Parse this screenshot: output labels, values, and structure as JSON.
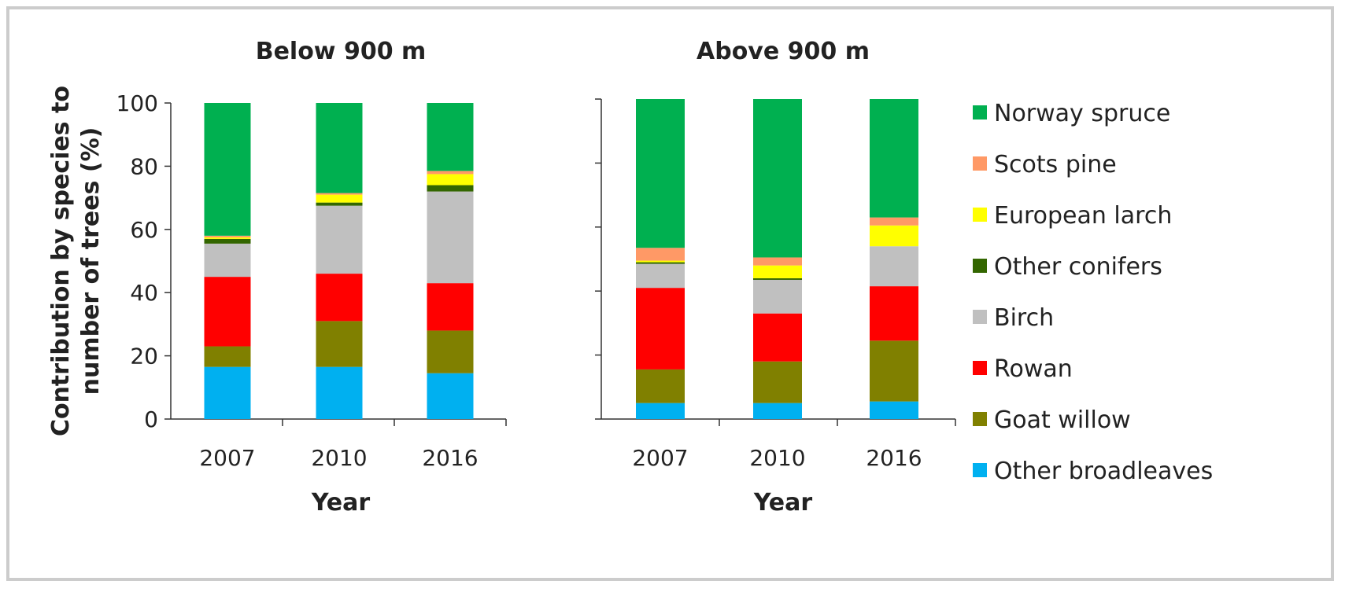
{
  "chart_data": {
    "type": "bar",
    "stacked": true,
    "ylabel": "Contribution by species to number of trees (%)",
    "xlabel": "Year",
    "ylim": [
      0,
      100
    ],
    "yticks": [
      0,
      20,
      40,
      60,
      80,
      100
    ],
    "legend_position": "right",
    "categories": [
      "2007",
      "2010",
      "2016"
    ],
    "series": [
      {
        "name": "Other broadleaves",
        "color": "#00b0f0"
      },
      {
        "name": "Goat willow",
        "color": "#808000"
      },
      {
        "name": "Rowan",
        "color": "#ff0000"
      },
      {
        "name": "Birch",
        "color": "#c0c0c0"
      },
      {
        "name": "Other conifers",
        "color": "#336600"
      },
      {
        "name": "European larch",
        "color": "#ffff00"
      },
      {
        "name": "Scots pine",
        "color": "#ff9966"
      },
      {
        "name": "Norway spruce",
        "color": "#00b050"
      }
    ],
    "panels": [
      {
        "title": "Below 900 m",
        "stacks": {
          "2007": [
            16.5,
            6.5,
            22,
            10.5,
            1.5,
            0.5,
            0.5,
            42
          ],
          "2010": [
            16.5,
            14.5,
            15,
            21.5,
            1,
            2.5,
            0.5,
            28.5
          ],
          "2016": [
            14.5,
            13.5,
            15,
            29,
            2,
            3.5,
            1,
            21.5
          ]
        }
      },
      {
        "title": "Above 900 m",
        "stacks": {
          "2007": [
            5,
            10.5,
            25.5,
            7.5,
            0.5,
            0.5,
            4,
            46.5
          ],
          "2010": [
            5,
            13,
            15,
            10.5,
            0.5,
            4,
            2.5,
            49.5
          ],
          "2016": [
            5.5,
            19,
            17,
            12.5,
            0,
            6.5,
            2.5,
            37
          ]
        }
      }
    ]
  }
}
